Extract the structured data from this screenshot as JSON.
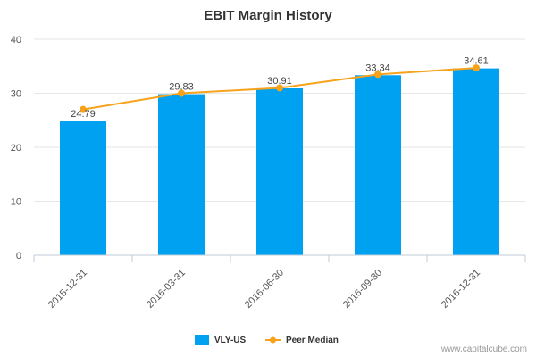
{
  "chart_data": {
    "type": "bar",
    "title": "EBIT Margin History",
    "xlabel": "",
    "ylabel": "",
    "categories": [
      "2015-12-31",
      "2016-03-31",
      "2016-06-30",
      "2016-09-30",
      "2016-12-31"
    ],
    "series": [
      {
        "name": "VLY-US",
        "type": "bar",
        "color": "#00a1f1",
        "values": [
          24.79,
          29.83,
          30.91,
          33.34,
          34.61
        ]
      },
      {
        "name": "Peer Median",
        "type": "line",
        "color": "#f7a21b",
        "values": [
          27.0,
          30.0,
          31.0,
          33.5,
          34.7
        ]
      }
    ],
    "data_labels": [
      "24.79",
      "29.83",
      "30.91",
      "33.34",
      "34.61"
    ],
    "yticks": [
      "0",
      "10",
      "20",
      "30",
      "40"
    ],
    "ylim": [
      0,
      40
    ],
    "grid": true,
    "legend_position": "bottom"
  },
  "credit": "www.capitalcube.com"
}
